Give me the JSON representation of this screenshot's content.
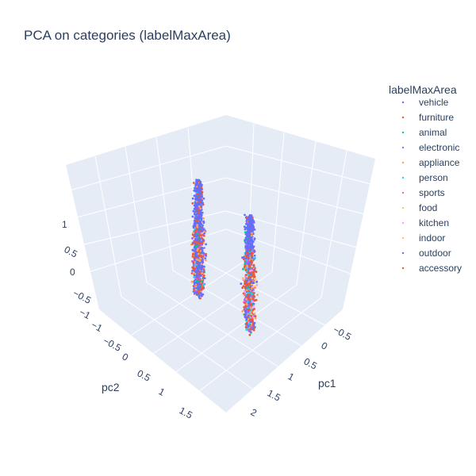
{
  "chart_data": {
    "type": "scatter",
    "subtype": "scatter3d",
    "title": "PCA on categories (labelMaxArea)",
    "xlabel": "pc1",
    "ylabel": "pc2",
    "zlabel": "",
    "legend_title": "labelMaxArea",
    "legend_position": "right",
    "grid": true,
    "x_ticks": [
      "−0.5",
      "0",
      "0.5",
      "1",
      "1.5",
      "2"
    ],
    "y_ticks": [
      "−1",
      "−0.5",
      "0",
      "0.5",
      "1",
      "1.5"
    ],
    "z_ticks": [
      "−1",
      "−0.5",
      "0",
      "0.5",
      "1"
    ],
    "series": [
      {
        "name": "vehicle",
        "color": "#636efa"
      },
      {
        "name": "furniture",
        "color": "#ef553b"
      },
      {
        "name": "animal",
        "color": "#00cc96"
      },
      {
        "name": "electronic",
        "color": "#ab63fa"
      },
      {
        "name": "appliance",
        "color": "#ffa15a"
      },
      {
        "name": "person",
        "color": "#19d3f3"
      },
      {
        "name": "sports",
        "color": "#ff6692"
      },
      {
        "name": "food",
        "color": "#b6e880"
      },
      {
        "name": "kitchen",
        "color": "#ff97ff"
      },
      {
        "name": "indoor",
        "color": "#fecb52"
      },
      {
        "name": "outdoor",
        "color": "#636efa"
      },
      {
        "name": "accessory",
        "color": "#ef553b"
      }
    ],
    "clusters": [
      {
        "label": "left",
        "pc1_range": [
          1.2,
          1.9
        ],
        "pc2_range": [
          -0.9,
          -0.5
        ],
        "pc3_range": [
          -0.9,
          0.9
        ]
      },
      {
        "label": "right",
        "pc1_range": [
          -0.6,
          0.2
        ],
        "pc2_range": [
          -0.2,
          0.3
        ],
        "pc3_range": [
          -0.7,
          1.1
        ]
      }
    ]
  }
}
